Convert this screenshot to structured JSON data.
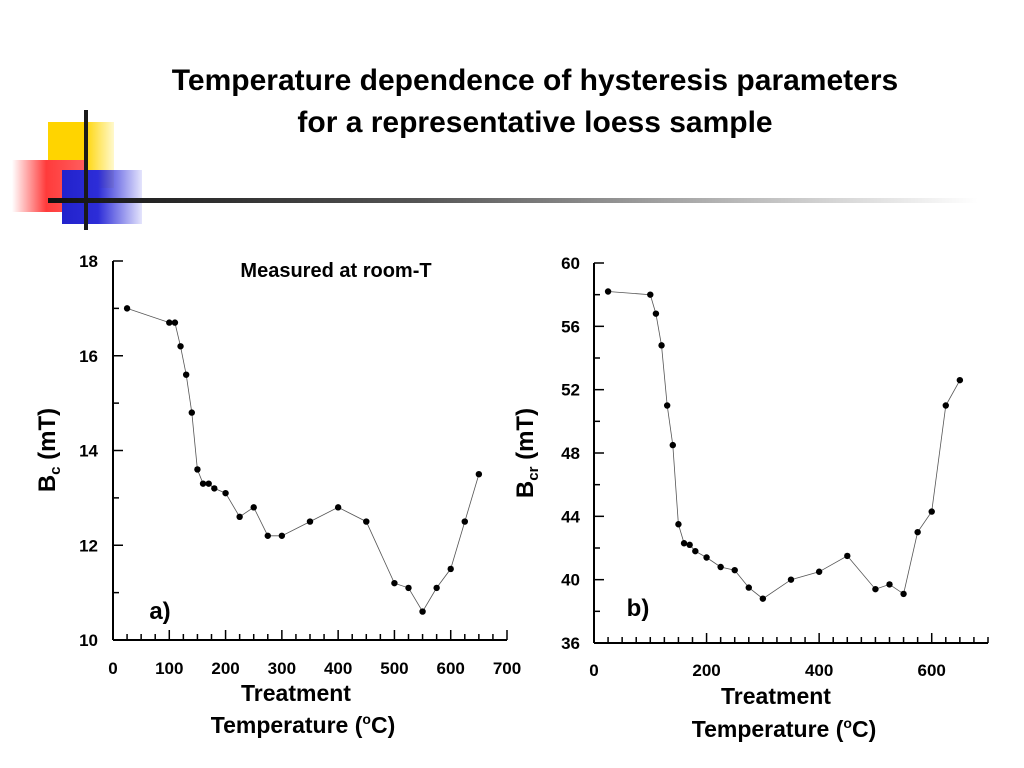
{
  "slide": {
    "title": "Temperature dependence of hysteresis parameters for a representative loess sample"
  },
  "chart_data": [
    {
      "type": "line",
      "panel_label": "a)",
      "annotation": "Measured at room-T",
      "ylabel": {
        "main": "B",
        "sub": "c",
        "rest": " (mT)"
      },
      "xlabel": {
        "line1": "Treatment",
        "line2_pre": "Temperature (",
        "line2_sup": "o",
        "line2_post": "C)"
      },
      "xlim": [
        0,
        700
      ],
      "ylim": [
        10,
        18
      ],
      "xticks": [
        "0",
        "100",
        "200",
        "300",
        "400",
        "500",
        "600",
        "700"
      ],
      "xtick_values": [
        0,
        100,
        200,
        300,
        400,
        500,
        600,
        700
      ],
      "yticks": [
        "10",
        "12",
        "14",
        "16",
        "18"
      ],
      "ytick_values": [
        10,
        12,
        14,
        16,
        18
      ],
      "x_minor_step": 25,
      "y_minor_step": 1,
      "series": [
        {
          "x": [
            25,
            100,
            110,
            120,
            130,
            140,
            150,
            160,
            170,
            180,
            200,
            225,
            250,
            275,
            300,
            350,
            400,
            450,
            500,
            525,
            550,
            575,
            600,
            625,
            650
          ],
          "y": [
            17.0,
            16.7,
            16.7,
            16.2,
            15.6,
            14.8,
            13.6,
            13.3,
            13.3,
            13.2,
            13.1,
            12.6,
            12.8,
            12.2,
            12.2,
            12.5,
            12.8,
            12.5,
            11.2,
            11.1,
            10.6,
            11.1,
            11.5,
            12.5,
            13.5
          ]
        }
      ]
    },
    {
      "type": "line",
      "panel_label": "b)",
      "ylabel": {
        "main": "B",
        "sub": "cr",
        "rest": " (mT)"
      },
      "xlabel": {
        "line1": "Treatment",
        "line2_pre": "Temperature (",
        "line2_sup": "o",
        "line2_post": "C)"
      },
      "xlim": [
        0,
        700
      ],
      "ylim": [
        36,
        60
      ],
      "xticks": [
        "0",
        "200",
        "400",
        "600"
      ],
      "xtick_values": [
        0,
        200,
        400,
        600
      ],
      "yticks": [
        "36",
        "40",
        "44",
        "48",
        "52",
        "56",
        "60"
      ],
      "ytick_values": [
        36,
        40,
        44,
        48,
        52,
        56,
        60
      ],
      "x_minor_step": 25,
      "y_minor_step": 2,
      "series": [
        {
          "x": [
            25,
            100,
            110,
            120,
            130,
            140,
            150,
            160,
            170,
            180,
            200,
            225,
            250,
            275,
            300,
            350,
            400,
            450,
            500,
            525,
            550,
            575,
            600,
            625,
            650
          ],
          "y": [
            58.2,
            58.0,
            56.8,
            54.8,
            51.0,
            48.5,
            43.5,
            42.3,
            42.2,
            41.8,
            41.4,
            40.8,
            40.6,
            39.5,
            38.8,
            40.0,
            40.5,
            41.5,
            39.4,
            39.7,
            39.1,
            43.0,
            44.3,
            51.0,
            52.6
          ]
        }
      ]
    }
  ]
}
